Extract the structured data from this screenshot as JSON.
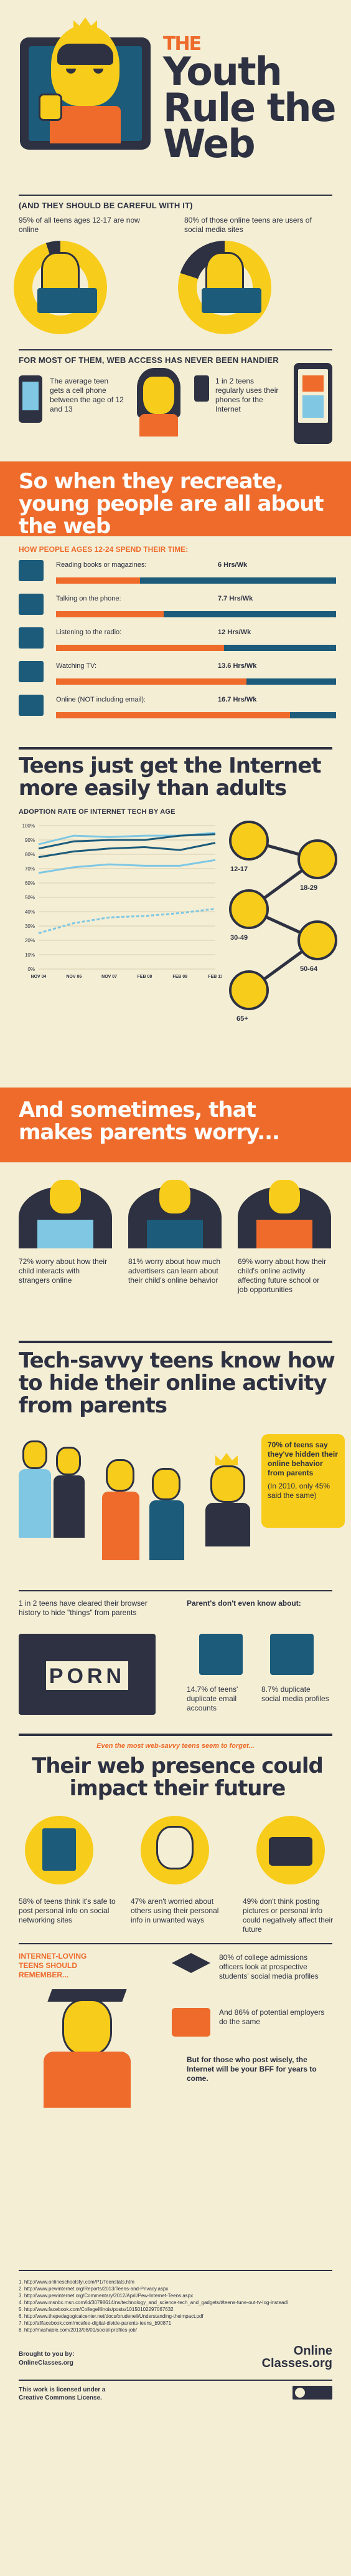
{
  "header": {
    "title_lines": [
      "THE",
      "Youth",
      "Rule the",
      "Web"
    ]
  },
  "careful": {
    "heading": "(AND THEY SHOULD BE CAREFUL WITH IT)",
    "left_stat": "95% of all teens ages 12-17 are now online",
    "right_stat": "80% of those online teens are users of social media sites",
    "left_pct": 95,
    "right_pct": 80
  },
  "access": {
    "heading": "FOR MOST OF THEM, WEB ACCESS HAS NEVER BEEN HANDIER",
    "left_text": "The average teen gets a cell phone between the age of 12 and 13",
    "right_text": "1 in 2 teens regularly uses their phones for the Internet"
  },
  "recreate": {
    "title": "So when they recreate, young people are all about the web",
    "subheading": "HOW PEOPLE AGES 12-24 SPEND THEIR TIME:",
    "rows": [
      {
        "label": "Reading books or magazines:",
        "value": "6 Hrs/Wk",
        "hours": 6,
        "icon": "book-icon"
      },
      {
        "label": "Talking on the phone:",
        "value": "7.7 Hrs/Wk",
        "hours": 7.7,
        "icon": "phone-icon"
      },
      {
        "label": "Listening to the radio:",
        "value": "12 Hrs/Wk",
        "hours": 12,
        "icon": "radio-icon"
      },
      {
        "label": "Watching TV:",
        "value": "13.6 Hrs/Wk",
        "hours": 13.6,
        "icon": "tv-icon"
      },
      {
        "label": "Online (NOT including email):",
        "value": "16.7 Hrs/Wk",
        "hours": 16.7,
        "icon": "laptop-icon"
      }
    ]
  },
  "adoption": {
    "title": "Teens just get the Internet more easily than adults",
    "chart_title": "ADOPTION RATE OF INTERNET TECH BY AGE",
    "ages": [
      "12-17",
      "18-29",
      "30-49",
      "50-64",
      "65+"
    ]
  },
  "chart_data": {
    "type": "line",
    "title": "ADOPTION RATE OF INTERNET TECH BY AGE",
    "categories": [
      "NOV 04",
      "NOV 06",
      "NOV 07",
      "FEB 08",
      "FEB 09",
      "FEB 11"
    ],
    "yticks": [
      "100%",
      "90%",
      "80%",
      "70%",
      "60%",
      "50%",
      "40%",
      "30%",
      "20%",
      "10%",
      "0%"
    ],
    "ylim": [
      0,
      100
    ],
    "series": [
      {
        "name": "12-17",
        "values": [
          87,
          93,
          92,
          93,
          93,
          95
        ],
        "color": "#7fc7e3"
      },
      {
        "name": "18-29",
        "values": [
          84,
          89,
          90,
          90,
          93,
          94
        ],
        "color": "#1c5b7a"
      },
      {
        "name": "30-49",
        "values": [
          78,
          82,
          84,
          85,
          83,
          88
        ],
        "color": "#1c5b7a"
      },
      {
        "name": "50-64",
        "values": [
          67,
          71,
          73,
          72,
          72,
          76
        ],
        "color": "#7fc7e3"
      },
      {
        "name": "65+",
        "values": [
          25,
          32,
          36,
          37,
          39,
          42
        ],
        "color": "#7fc7e3"
      }
    ]
  },
  "parents": {
    "title": "And sometimes, that makes parents worry...",
    "items": [
      {
        "text": "72% worry about how their child interacts with strangers online"
      },
      {
        "text": "81% worry about how much advertisers can learn about their child's online behavior"
      },
      {
        "text": "69% worry about how their child's online activity affecting future school or job opportunities"
      }
    ]
  },
  "hide": {
    "title": "Tech-savvy teens know how to hide their online activity from parents",
    "bubble": "70% of teens say they've hidden their online behavior from parents",
    "bubble_note": "(In 2010, only 45% said the same)",
    "history_text": "1 in 2 teens have cleared their browser history to hide \"things\" from parents",
    "dont_know": "Parent's don't even know about:",
    "email_text": "14.7% of teens' duplicate email accounts",
    "social_text": "8.7% duplicate social media profiles",
    "sign_text": "PORN"
  },
  "future": {
    "kicker": "Even the most web-savvy teens seem to forget...",
    "title": "Their web presence could impact their future",
    "stats": [
      {
        "text": "58% of teens think it's safe to post personal info on social networking sites",
        "icon": "diary-icon"
      },
      {
        "text": "47% aren't worried about others using their personal info in unwanted ways",
        "icon": "worried-face-icon"
      },
      {
        "text": "49% don't think posting pictures or personal info could negatively affect their future",
        "icon": "camera-icon"
      }
    ],
    "remember": "INTERNET-LOVING TEENS SHOULD REMEMBER...",
    "college": "80% of college admissions officers look at prospective students' social media profiles",
    "employers": "And 86% of potential employers do the same",
    "closing": "But for those who post wisely, the Internet will be your BFF for years to come."
  },
  "sources": {
    "items": [
      "1. http://www.onlineschoolsfyi.com/P1/Teenstats.htm",
      "2. http://www.pewinternet.org/Reports/2013/Teens-and-Privacy.aspx",
      "3. http://www.pewinternet.org/Commentary/2012/April/Pew-Internet-Teens.aspx",
      "4. http://www.msnbc.msn.com/id/30798614/ns/technology_and_science-tech_and_gadgets/t/teens-tune-out-tv-log-instead/",
      "5. http://www.facebook.com/CollegeIllinois/posts/10150102297067632",
      "6. http://www.thepedagogicalcenter.net/docs/brudeneli/Understanding-theimpact.pdf",
      "7. http://allfacebook.com/mcafee-digital-divide-parents-teens_b90871",
      "8. http://mashable.com/2013/08/01/social-profiles-job/"
    ],
    "brought": "Brought to you by:",
    "brought_site": "OnlineClasses.org",
    "logo_line1": "Online",
    "logo_line2": "Classes.org",
    "license": "This work is licensed under a Creative Commons License."
  }
}
